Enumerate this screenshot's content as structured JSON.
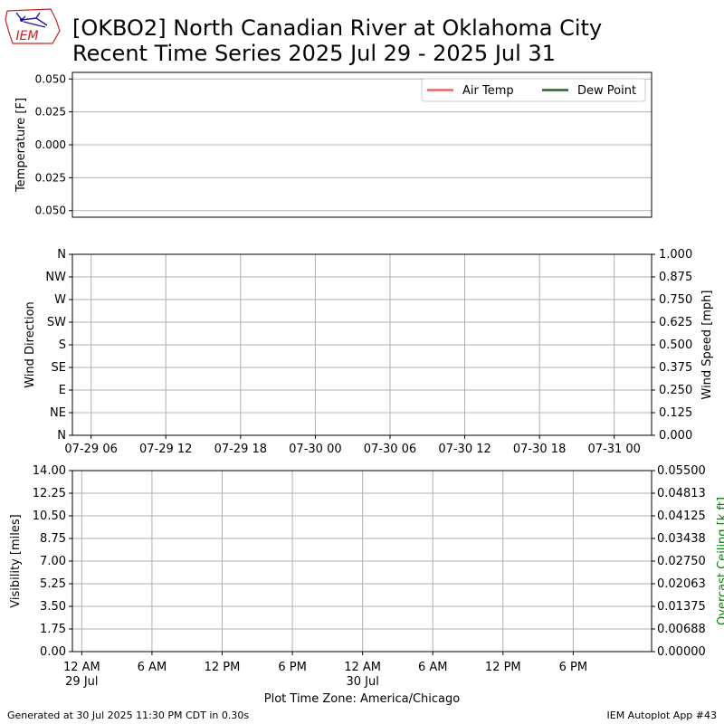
{
  "header": {
    "logo_text": "IEM",
    "title_line1": "[OKBO2] North Canadian River at Oklahoma City",
    "title_line2": "Recent Time Series 2025 Jul 29 - 2025 Jul 31"
  },
  "footer": {
    "generated": "Generated at 30 Jul 2025 11:30 PM CDT in 0.30s",
    "app": "IEM Autoplot App #43"
  },
  "colors": {
    "air_temp": "#e06666",
    "dew_point": "#2e5f2e",
    "ceiling_label": "#008000",
    "grid": "#b0b0b0",
    "logo_blue": "#1a1aa8",
    "logo_red": "#cc2222"
  },
  "chart_data": [
    {
      "type": "line",
      "ylabel": "Temperature [F]",
      "ylim": [
        -0.055,
        0.055
      ],
      "yticks": [
        "0.050",
        "0.025",
        "0.000",
        "0.025",
        "0.050"
      ],
      "ytick_values": [
        0.05,
        0.025,
        0.0,
        -0.025,
        -0.05
      ],
      "legend_position": "top-right",
      "grid": true,
      "series": [
        {
          "name": "Air Temp",
          "values": []
        },
        {
          "name": "Dew Point",
          "values": []
        }
      ]
    },
    {
      "type": "scatter",
      "ylabel": "Wind Direction",
      "y2label": "Wind Speed [mph]",
      "yticks": [
        "N",
        "NW",
        "W",
        "SW",
        "S",
        "SE",
        "E",
        "NE",
        "N"
      ],
      "y2ticks": [
        "1.000",
        "0.875",
        "0.750",
        "0.625",
        "0.500",
        "0.375",
        "0.250",
        "0.125",
        "0.000"
      ],
      "xticks": [
        "07-29 06",
        "07-29 12",
        "07-29 18",
        "07-30 00",
        "07-30 06",
        "07-30 12",
        "07-30 18",
        "07-31 00"
      ],
      "xtick_hours": [
        6,
        12,
        18,
        24,
        30,
        36,
        42,
        48
      ],
      "xlim_hours": [
        4.5,
        51
      ],
      "grid": true,
      "series": []
    },
    {
      "type": "line",
      "ylabel": "Visibility [miles]",
      "y2label": "Overcast Ceiling [k ft]",
      "ylim": [
        0,
        14
      ],
      "yticks": [
        "14.00",
        "12.25",
        "10.50",
        "8.75",
        "7.00",
        "5.25",
        "3.50",
        "1.75",
        "0.00"
      ],
      "y2lim": [
        0,
        0.055
      ],
      "y2ticks": [
        "0.05500",
        "0.04813",
        "0.04125",
        "0.03438",
        "0.02750",
        "0.02063",
        "0.01375",
        "0.00688",
        "0.00000"
      ],
      "xticks": [
        [
          "12 AM",
          "29 Jul"
        ],
        [
          "6 AM",
          ""
        ],
        [
          "12 PM",
          ""
        ],
        [
          "6 PM",
          ""
        ],
        [
          "12 AM",
          "30 Jul"
        ],
        [
          "6 AM",
          ""
        ],
        [
          "12 PM",
          ""
        ],
        [
          "6 PM",
          ""
        ]
      ],
      "xtick_hours": [
        0,
        6,
        12,
        18,
        24,
        30,
        36,
        42
      ],
      "xlim_hours": [
        -0.8,
        48.7
      ],
      "xlabel": "Plot Time Zone: America/Chicago",
      "grid": true,
      "series": []
    }
  ]
}
